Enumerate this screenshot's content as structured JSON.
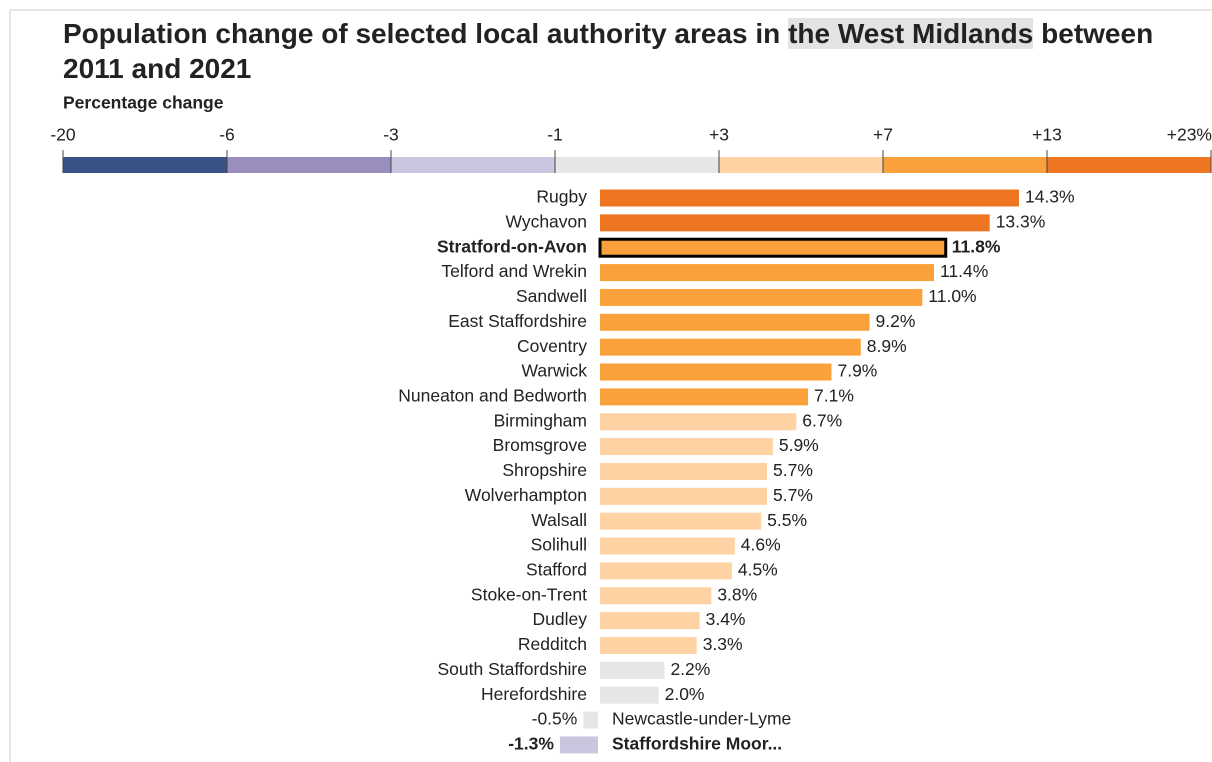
{
  "chart_data": {
    "type": "bar",
    "title": [
      "Population change of selected local authority areas in ",
      "the West Midlands",
      " between 2011 and 2021"
    ],
    "legend": {
      "title": "Percentage change",
      "ticks": [
        -20,
        -6,
        -3,
        -1,
        {
          "value": 3,
          "label": "+3"
        },
        {
          "value": 7,
          "label": "+7"
        },
        {
          "value": 13,
          "label": "+13"
        },
        {
          "value": 23,
          "label": "+23%"
        }
      ],
      "colors": [
        "#3b5286",
        "#9a8ebf",
        "#cbc6df",
        "#e6e6e6",
        "#fed2a2",
        "#fba13c",
        "#ee7623"
      ]
    },
    "categories": [
      "Rugby",
      "Wychavon",
      "Stratford-on-Avon",
      "Telford and Wrekin",
      "Sandwell",
      "East Staffordshire",
      "Coventry",
      "Warwick",
      "Nuneaton and Bedworth",
      "Birmingham",
      "Bromsgrove",
      "Shropshire",
      "Wolverhampton",
      "Walsall",
      "Solihull",
      "Stafford",
      "Stoke-on-Trent",
      "Dudley",
      "Redditch",
      "South Staffordshire",
      "Herefordshire",
      "Newcastle-under-Lyme",
      "Staffordshire Moor..."
    ],
    "values": [
      14.3,
      13.3,
      11.8,
      11.4,
      11.0,
      9.2,
      8.9,
      7.9,
      7.1,
      6.7,
      5.9,
      5.7,
      5.7,
      5.5,
      4.6,
      4.5,
      3.8,
      3.4,
      3.3,
      2.2,
      2.0,
      -0.5,
      -1.3
    ],
    "value_labels": [
      "14.3%",
      "13.3%",
      "11.8%",
      "11.4%",
      "11.0%",
      "9.2%",
      "8.9%",
      "7.9%",
      "7.1%",
      "6.7%",
      "5.9%",
      "5.7%",
      "5.7%",
      "5.5%",
      "4.6%",
      "4.5%",
      "3.8%",
      "3.4%",
      "3.3%",
      "2.2%",
      "2.0%",
      "-0.5%",
      "-1.3%"
    ],
    "bold": [
      2,
      22
    ],
    "outlined": [
      2
    ]
  }
}
